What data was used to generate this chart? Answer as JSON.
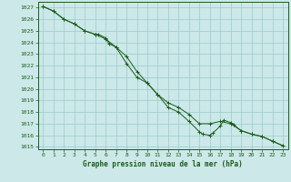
{
  "title": "Graphe pression niveau de la mer (hPa)",
  "bg_color": "#cce8e8",
  "plot_bg_color": "#cce8e8",
  "grid_color": "#99cccc",
  "line_color": "#1a5c1a",
  "marker_color": "#1a5c1a",
  "xlim": [
    -0.5,
    23.5
  ],
  "ylim": [
    1014.8,
    1027.5
  ],
  "xtick_labels": [
    "0",
    "1",
    "2",
    "3",
    "4",
    "5",
    "6",
    "7",
    "8",
    "9",
    "10",
    "11",
    "12",
    "13",
    "14",
    "15",
    "16",
    "17",
    "18",
    "19",
    "20",
    "21",
    "22",
    "23"
  ],
  "xticks": [
    0,
    1,
    2,
    3,
    4,
    5,
    6,
    7,
    8,
    9,
    10,
    11,
    12,
    13,
    14,
    15,
    16,
    17,
    18,
    19,
    20,
    21,
    22,
    23
  ],
  "yticks": [
    1015,
    1016,
    1017,
    1018,
    1019,
    1020,
    1021,
    1022,
    1023,
    1024,
    1025,
    1026,
    1027
  ],
  "series1_x": [
    0,
    1,
    2,
    3,
    4,
    5,
    6,
    7,
    8,
    9,
    10,
    11,
    12,
    13,
    14,
    15,
    16,
    17,
    18,
    19,
    20,
    21,
    22,
    23
  ],
  "series1_y": [
    1027.1,
    1026.7,
    1026.0,
    1025.6,
    1025.0,
    1024.7,
    1024.3,
    1023.6,
    1022.8,
    1021.5,
    1020.5,
    1019.5,
    1018.8,
    1018.4,
    1017.8,
    1017.0,
    1017.0,
    1017.2,
    1017.0,
    1016.4,
    1016.1,
    1015.9,
    1015.5,
    1015.1
  ],
  "series2_x": [
    0,
    1,
    2,
    3,
    4,
    5,
    5.3,
    6,
    6.3,
    7,
    8,
    9,
    10,
    11,
    12,
    13,
    14,
    15,
    15.3,
    16,
    16.3,
    17,
    17.3,
    18,
    18.3,
    19,
    20,
    21,
    22,
    23
  ],
  "series2_y": [
    1027.1,
    1026.7,
    1026.0,
    1025.6,
    1025.0,
    1024.7,
    1024.7,
    1024.4,
    1023.9,
    1023.6,
    1022.2,
    1021.0,
    1020.5,
    1019.5,
    1018.4,
    1018.0,
    1017.2,
    1016.3,
    1016.1,
    1016.0,
    1016.2,
    1016.8,
    1017.3,
    1017.1,
    1016.9,
    1016.4,
    1016.1,
    1015.9,
    1015.5,
    1015.1
  ]
}
